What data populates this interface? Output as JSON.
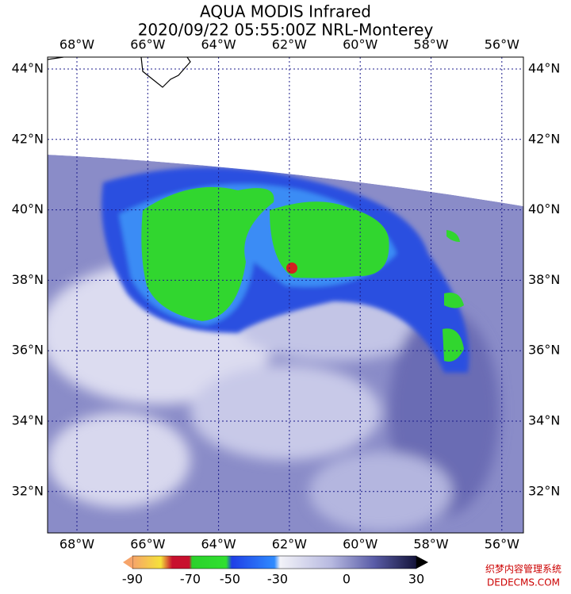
{
  "header": {
    "title": "AQUA MODIS Infrared",
    "subtitle": "2020/09/22 05:55:00Z NRL-Monterey"
  },
  "map": {
    "longitude_labels": [
      "68°W",
      "66°W",
      "64°W",
      "62°W",
      "60°W",
      "58°W",
      "56°W"
    ],
    "latitude_labels": [
      "44°N",
      "42°N",
      "40°N",
      "38°N",
      "36°N",
      "34°N",
      "32°N"
    ]
  },
  "colorbar": {
    "ticks": [
      -90,
      -70,
      -50,
      -30,
      0,
      30
    ]
  },
  "watermark": {
    "line1": "织梦内容管理系统",
    "line2": "DEDECMS.COM"
  }
}
